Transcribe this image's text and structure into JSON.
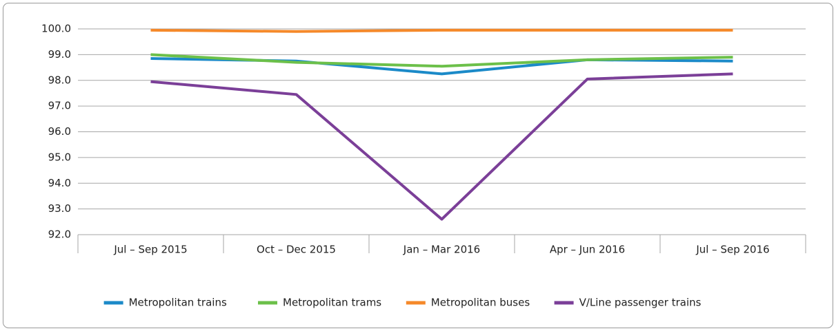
{
  "chart_data": {
    "type": "line",
    "categories": [
      "Jul – Sep 2015",
      "Oct – Dec 2015",
      "Jan – Mar 2016",
      "Apr – Jun 2016",
      "Jul – Sep 2016"
    ],
    "series": [
      {
        "name": "Metropolitan trains",
        "color": "#1b8ac8",
        "values": [
          98.85,
          98.75,
          98.25,
          98.8,
          98.75
        ]
      },
      {
        "name": "Metropolitan trams",
        "color": "#6cc04a",
        "values": [
          99.0,
          98.7,
          98.55,
          98.8,
          98.9
        ]
      },
      {
        "name": "Metropolitan buses",
        "color": "#f5892a",
        "values": [
          99.95,
          99.9,
          99.95,
          99.95,
          99.95
        ]
      },
      {
        "name": "V/Line passenger trains",
        "color": "#7b3f98",
        "values": [
          97.95,
          97.45,
          92.6,
          98.05,
          98.25
        ]
      }
    ],
    "ylim": [
      92,
      100
    ],
    "yticks": [
      {
        "value": 92,
        "label": "92.0"
      },
      {
        "value": 93,
        "label": "93.0"
      },
      {
        "value": 94,
        "label": "94.0"
      },
      {
        "value": 95,
        "label": "95.0"
      },
      {
        "value": 96,
        "label": "96.0"
      },
      {
        "value": 97,
        "label": "97.0"
      },
      {
        "value": 98,
        "label": "98.0"
      },
      {
        "value": 99,
        "label": "99.0"
      },
      {
        "value": 100,
        "label": "100.0"
      }
    ],
    "grid": true,
    "legend": "bottom"
  }
}
